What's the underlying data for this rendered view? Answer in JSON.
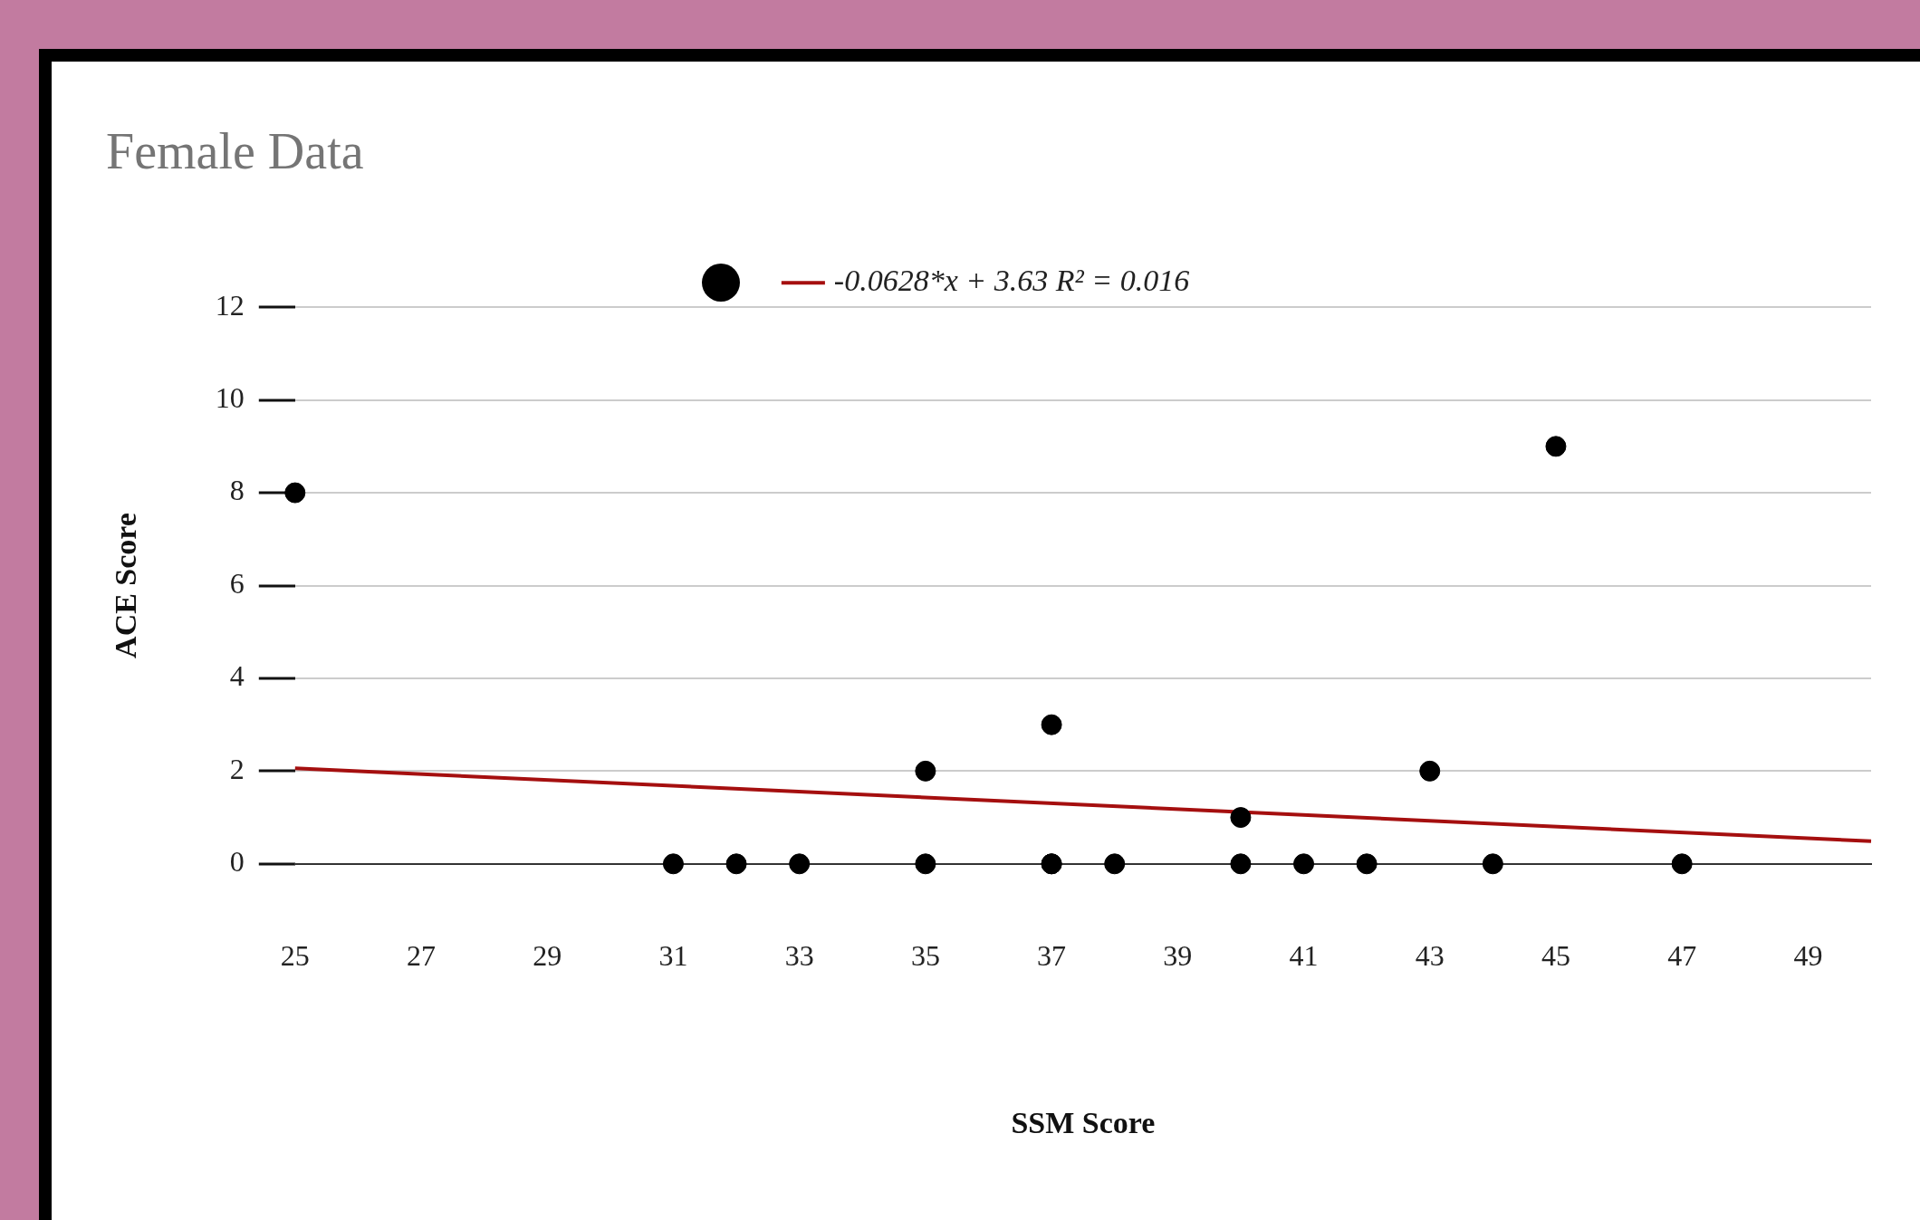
{
  "chart_data": {
    "type": "scatter",
    "title": "Female Data",
    "xlabel": "SSM Score",
    "ylabel": "ACE Score",
    "xlim": [
      25,
      50
    ],
    "xticks": [
      25,
      27,
      29,
      31,
      33,
      35,
      37,
      39,
      41,
      43,
      45,
      47,
      49
    ],
    "ylim": [
      0,
      12
    ],
    "yticks": [
      0,
      2,
      4,
      6,
      8,
      10,
      12
    ],
    "grid": "y",
    "legend": "top",
    "series": [
      {
        "type": "scatter",
        "marker": "circle",
        "color": "#000000",
        "x": [
          25,
          45,
          37,
          35,
          43,
          40,
          31,
          32,
          33,
          35,
          37,
          37,
          38,
          40,
          41,
          42,
          44,
          47
        ],
        "values": [
          8,
          9,
          3,
          2,
          2,
          1,
          0,
          0,
          0,
          0,
          0,
          0,
          0,
          0,
          0,
          0,
          0,
          0
        ]
      },
      {
        "type": "line",
        "marker": "none",
        "name": "-0.0628*x + 3.63 R² = 0.016",
        "color": "#a50f0f",
        "x": [
          25,
          50
        ],
        "values": [
          2.06,
          0.49
        ]
      }
    ]
  }
}
